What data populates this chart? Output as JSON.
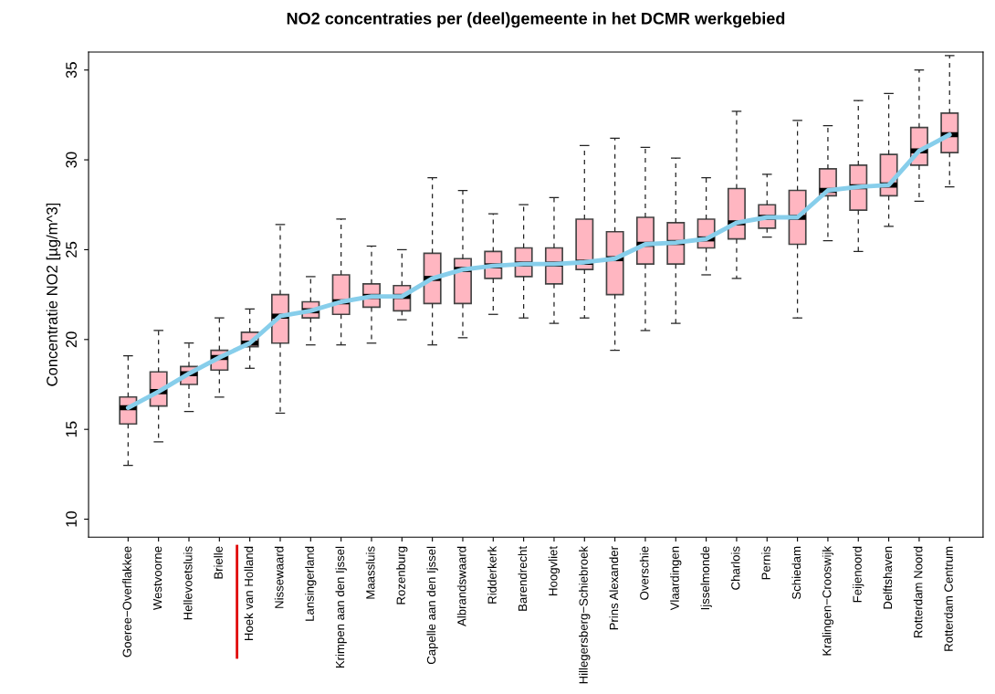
{
  "chart_data": {
    "type": "box",
    "title": "NO2 concentraties per (deel)gemeente in het DCMR werkgebied",
    "ylabel": "Concentratie NO2 [µg/m^3]",
    "categories": [
      "Goeree−Overflakkee",
      "Westvoorne",
      "Hellevoetsluis",
      "Brielle",
      "Hoek van Holland",
      "Nissewaard",
      "Lansingerland",
      "Krimpen aan den Ijssel",
      "Maassluis",
      "Rozenburg",
      "Capelle aan den Ijssel",
      "Albrandswaard",
      "Ridderkerk",
      "Barendrecht",
      "Hoogvliet",
      "Hillegersberg−Schiebroek",
      "Prins Alexander",
      "Overschie",
      "Vlaardingen",
      "Ijsselmonde",
      "Charlois",
      "Pernis",
      "Schiedam",
      "Kralingen−Crooswijk",
      "Feijenoord",
      "Delftshaven",
      "Rotterdam Noord",
      "Rotterdam Centrum"
    ],
    "series": [
      {
        "color": "#ffb6c1",
        "boxes": [
          {
            "low": 13.0,
            "q1": 15.3,
            "median": 16.2,
            "q3": 16.8,
            "high": 19.1
          },
          {
            "low": 14.3,
            "q1": 16.3,
            "median": 17.1,
            "q3": 18.2,
            "high": 20.5
          },
          {
            "low": 16.0,
            "q1": 17.5,
            "median": 18.1,
            "q3": 18.5,
            "high": 19.8
          },
          {
            "low": 16.8,
            "q1": 18.3,
            "median": 19.0,
            "q3": 19.4,
            "high": 21.2
          },
          {
            "low": 18.4,
            "q1": 19.6,
            "median": 19.8,
            "q3": 20.4,
            "high": 21.7
          },
          {
            "low": 15.9,
            "q1": 19.8,
            "median": 21.3,
            "q3": 22.5,
            "high": 26.4
          },
          {
            "low": 19.7,
            "q1": 21.2,
            "median": 21.6,
            "q3": 22.1,
            "high": 23.5
          },
          {
            "low": 19.7,
            "q1": 21.4,
            "median": 22.1,
            "q3": 23.6,
            "high": 26.7
          },
          {
            "low": 19.8,
            "q1": 21.8,
            "median": 22.4,
            "q3": 23.1,
            "high": 25.2
          },
          {
            "low": 21.1,
            "q1": 21.6,
            "median": 22.4,
            "q3": 23.0,
            "high": 25.0
          },
          {
            "low": 19.7,
            "q1": 22.0,
            "median": 23.4,
            "q3": 24.8,
            "high": 29.0
          },
          {
            "low": 20.1,
            "q1": 22.0,
            "median": 23.9,
            "q3": 24.5,
            "high": 28.3
          },
          {
            "low": 21.4,
            "q1": 23.4,
            "median": 24.1,
            "q3": 24.9,
            "high": 27.0
          },
          {
            "low": 21.2,
            "q1": 23.5,
            "median": 24.2,
            "q3": 25.1,
            "high": 27.5
          },
          {
            "low": 20.9,
            "q1": 23.1,
            "median": 24.2,
            "q3": 25.1,
            "high": 27.9
          },
          {
            "low": 21.2,
            "q1": 23.9,
            "median": 24.3,
            "q3": 26.7,
            "high": 30.8
          },
          {
            "low": 19.4,
            "q1": 22.5,
            "median": 24.5,
            "q3": 26.0,
            "high": 31.2
          },
          {
            "low": 20.5,
            "q1": 24.2,
            "median": 25.3,
            "q3": 26.8,
            "high": 30.7
          },
          {
            "low": 20.9,
            "q1": 24.2,
            "median": 25.4,
            "q3": 26.5,
            "high": 30.1
          },
          {
            "low": 23.6,
            "q1": 25.1,
            "median": 25.6,
            "q3": 26.7,
            "high": 29.0
          },
          {
            "low": 23.4,
            "q1": 25.6,
            "median": 26.5,
            "q3": 28.4,
            "high": 32.7
          },
          {
            "low": 25.7,
            "q1": 26.2,
            "median": 26.8,
            "q3": 27.5,
            "high": 29.2
          },
          {
            "low": 21.2,
            "q1": 25.3,
            "median": 26.8,
            "q3": 28.3,
            "high": 32.2
          },
          {
            "low": 25.5,
            "q1": 28.0,
            "median": 28.3,
            "q3": 29.5,
            "high": 31.9
          },
          {
            "low": 24.9,
            "q1": 27.2,
            "median": 28.5,
            "q3": 29.7,
            "high": 33.3
          },
          {
            "low": 26.3,
            "q1": 28.0,
            "median": 28.6,
            "q3": 30.3,
            "high": 33.7
          },
          {
            "low": 27.7,
            "q1": 29.7,
            "median": 30.5,
            "q3": 31.8,
            "high": 35.0
          },
          {
            "low": 28.5,
            "q1": 30.4,
            "median": 31.4,
            "q3": 32.6,
            "high": 35.8
          }
        ]
      },
      {
        "type": "line",
        "color": "#87ceeb",
        "values": [
          16.2,
          17.1,
          18.1,
          19.0,
          19.8,
          21.3,
          21.6,
          22.1,
          22.4,
          22.4,
          23.4,
          23.9,
          24.1,
          24.2,
          24.2,
          24.3,
          24.5,
          25.3,
          25.4,
          25.6,
          26.5,
          26.8,
          26.8,
          28.3,
          28.5,
          28.6,
          30.5,
          31.4
        ]
      }
    ],
    "ylim": [
      9,
      36
    ],
    "yticks": [
      10,
      15,
      20,
      25,
      30,
      35
    ],
    "grid": false,
    "legend": false
  }
}
